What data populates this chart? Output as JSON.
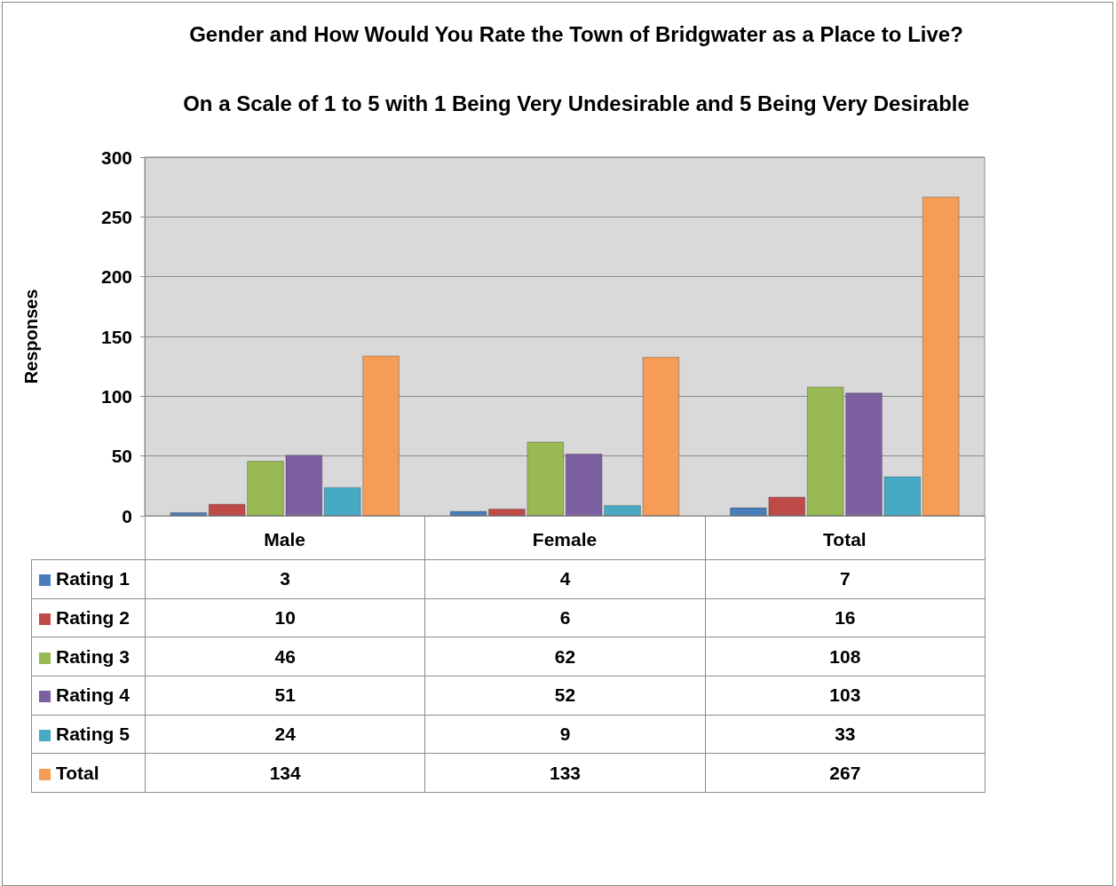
{
  "chart_data": {
    "type": "bar",
    "title": "Gender and How Would You Rate the Town of Bridgwater as a Place to Live?",
    "subtitle": "On a Scale of 1 to 5 with 1 Being Very Undesirable and 5 Being Very Desirable",
    "ylabel": "Responses",
    "categories": [
      "Male",
      "Female",
      "Total"
    ],
    "series": [
      {
        "name": "Rating 1",
        "color": "#4a7ebb",
        "values": [
          3,
          4,
          7
        ]
      },
      {
        "name": "Rating 2",
        "color": "#be4b48",
        "values": [
          10,
          6,
          16
        ]
      },
      {
        "name": "Rating 3",
        "color": "#98b954",
        "values": [
          46,
          62,
          108
        ]
      },
      {
        "name": "Rating 4",
        "color": "#7d60a0",
        "values": [
          51,
          52,
          103
        ]
      },
      {
        "name": "Rating 5",
        "color": "#46aac5",
        "values": [
          24,
          9,
          33
        ]
      },
      {
        "name": "Total",
        "color": "#f59d56",
        "values": [
          134,
          133,
          267
        ]
      }
    ],
    "ylim": [
      0,
      300
    ],
    "yticks": [
      0,
      50,
      100,
      150,
      200,
      250,
      300
    ],
    "grid": "y",
    "legend": "bottom left",
    "data_labels": true
  }
}
